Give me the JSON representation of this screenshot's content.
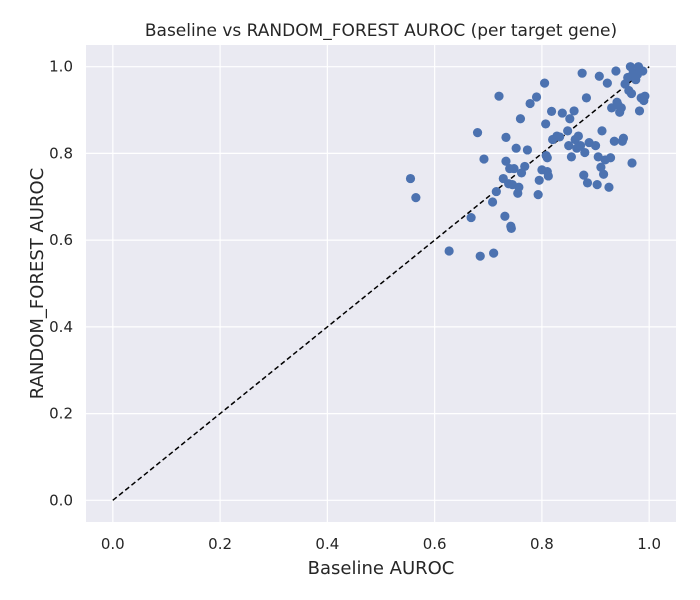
{
  "chart_data": {
    "type": "scatter",
    "title": "Baseline vs RANDOM_FOREST AUROC (per target gene)",
    "xlabel": "Baseline AUROC",
    "ylabel": "RANDOM_FOREST AUROC",
    "xlim": [
      -0.05,
      1.05
    ],
    "ylim": [
      -0.05,
      1.05
    ],
    "xticks": [
      "0.0",
      "0.2",
      "0.4",
      "0.6",
      "0.8",
      "1.0"
    ],
    "yticks": [
      "0.0",
      "0.2",
      "0.4",
      "0.6",
      "0.8",
      "1.0"
    ],
    "grid": true,
    "reference_line": {
      "from": [
        0,
        0
      ],
      "to": [
        1,
        1
      ],
      "style": "dashed",
      "color": "#000000"
    },
    "point_color": "#4c72b0",
    "background": "#eaeaf2",
    "points": [
      [
        0.555,
        0.742
      ],
      [
        0.565,
        0.698
      ],
      [
        0.627,
        0.575
      ],
      [
        0.668,
        0.652
      ],
      [
        0.68,
        0.848
      ],
      [
        0.685,
        0.563
      ],
      [
        0.692,
        0.787
      ],
      [
        0.708,
        0.688
      ],
      [
        0.71,
        0.57
      ],
      [
        0.715,
        0.712
      ],
      [
        0.72,
        0.932
      ],
      [
        0.728,
        0.742
      ],
      [
        0.731,
        0.655
      ],
      [
        0.733,
        0.837
      ],
      [
        0.733,
        0.782
      ],
      [
        0.738,
        0.73
      ],
      [
        0.74,
        0.765
      ],
      [
        0.742,
        0.632
      ],
      [
        0.743,
        0.627
      ],
      [
        0.745,
        0.728
      ],
      [
        0.748,
        0.765
      ],
      [
        0.752,
        0.812
      ],
      [
        0.755,
        0.708
      ],
      [
        0.757,
        0.722
      ],
      [
        0.76,
        0.88
      ],
      [
        0.762,
        0.755
      ],
      [
        0.768,
        0.77
      ],
      [
        0.773,
        0.808
      ],
      [
        0.778,
        0.915
      ],
      [
        0.79,
        0.93
      ],
      [
        0.793,
        0.705
      ],
      [
        0.795,
        0.738
      ],
      [
        0.8,
        0.762
      ],
      [
        0.805,
        0.962
      ],
      [
        0.807,
        0.868
      ],
      [
        0.808,
        0.795
      ],
      [
        0.81,
        0.79
      ],
      [
        0.81,
        0.758
      ],
      [
        0.812,
        0.748
      ],
      [
        0.818,
        0.897
      ],
      [
        0.82,
        0.832
      ],
      [
        0.828,
        0.84
      ],
      [
        0.833,
        0.838
      ],
      [
        0.838,
        0.893
      ],
      [
        0.848,
        0.852
      ],
      [
        0.85,
        0.818
      ],
      [
        0.852,
        0.88
      ],
      [
        0.855,
        0.792
      ],
      [
        0.86,
        0.898
      ],
      [
        0.862,
        0.832
      ],
      [
        0.865,
        0.812
      ],
      [
        0.868,
        0.84
      ],
      [
        0.872,
        0.818
      ],
      [
        0.875,
        0.985
      ],
      [
        0.878,
        0.75
      ],
      [
        0.88,
        0.802
      ],
      [
        0.883,
        0.928
      ],
      [
        0.885,
        0.732
      ],
      [
        0.888,
        0.825
      ],
      [
        0.9,
        0.818
      ],
      [
        0.903,
        0.728
      ],
      [
        0.905,
        0.792
      ],
      [
        0.907,
        0.978
      ],
      [
        0.91,
        0.768
      ],
      [
        0.912,
        0.852
      ],
      [
        0.915,
        0.752
      ],
      [
        0.918,
        0.785
      ],
      [
        0.922,
        0.962
      ],
      [
        0.925,
        0.722
      ],
      [
        0.928,
        0.79
      ],
      [
        0.93,
        0.905
      ],
      [
        0.935,
        0.828
      ],
      [
        0.938,
        0.99
      ],
      [
        0.94,
        0.918
      ],
      [
        0.942,
        0.912
      ],
      [
        0.945,
        0.895
      ],
      [
        0.948,
        0.905
      ],
      [
        0.95,
        0.828
      ],
      [
        0.952,
        0.835
      ],
      [
        0.955,
        0.96
      ],
      [
        0.96,
        0.975
      ],
      [
        0.962,
        0.945
      ],
      [
        0.965,
        1.0
      ],
      [
        0.967,
        0.938
      ],
      [
        0.968,
        0.778
      ],
      [
        0.97,
        0.985
      ],
      [
        0.975,
        0.97
      ],
      [
        0.978,
        0.982
      ],
      [
        0.98,
        1.0
      ],
      [
        0.982,
        0.898
      ],
      [
        0.985,
        0.928
      ],
      [
        0.988,
        0.99
      ],
      [
        0.99,
        0.922
      ],
      [
        0.992,
        0.932
      ]
    ]
  }
}
